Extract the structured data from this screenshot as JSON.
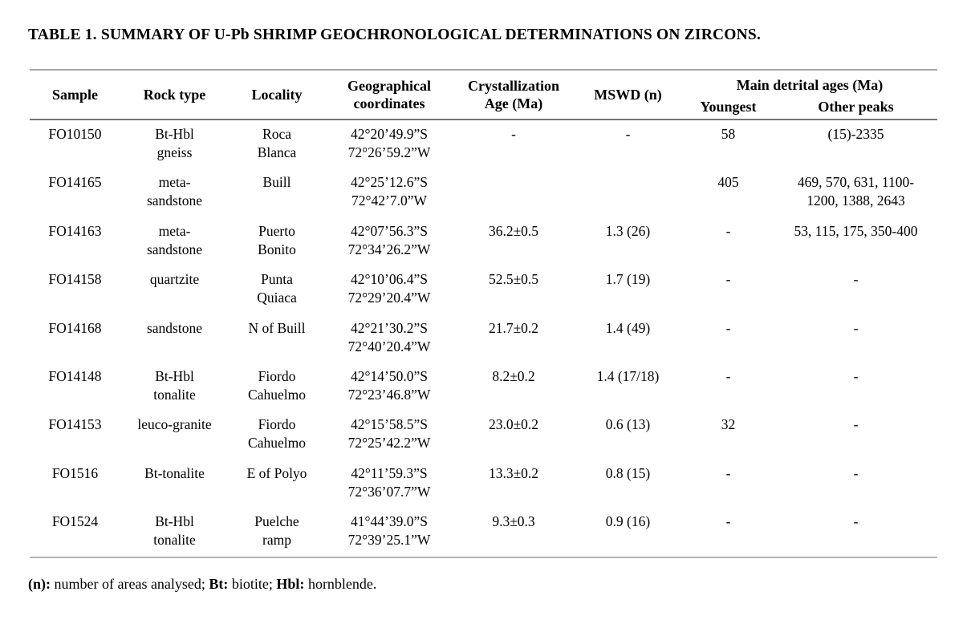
{
  "title": "TABLE 1. SUMMARY OF U-Pb SHRIMP GEOCHRONOLOGICAL DETERMINATIONS ON ZIRCONS.",
  "table": {
    "headers": {
      "sample": "Sample",
      "rock_type": "Rock type",
      "locality": "Locality",
      "geo_coords": "Geographical\ncoordinates",
      "cryst_age": "Crystallization\nAge (Ma)",
      "mswd": "MSWD (n)",
      "detrital_group": "Main detrital ages (Ma)",
      "youngest": "Youngest",
      "other_peaks": "Other peaks"
    },
    "rows": [
      {
        "sample": "FO10150",
        "rock_type": "Bt-Hbl\ngneiss",
        "locality": "Roca\nBlanca",
        "coords": "42°20’49.9”S\n72°26’59.2”W",
        "cryst_age": "-",
        "mswd": "-",
        "youngest": "58",
        "other_peaks": "(15)-2335"
      },
      {
        "sample": "FO14165",
        "rock_type": "meta-\nsandstone",
        "locality": "Buill",
        "coords": "42°25’12.6”S\n72°42’7.0”W",
        "cryst_age": "",
        "mswd": "",
        "youngest": "405",
        "other_peaks": "469, 570, 631, 1100-\n1200, 1388, 2643"
      },
      {
        "sample": "FO14163",
        "rock_type": "meta-\nsandstone",
        "locality": "Puerto\nBonito",
        "coords": "42°07’56.3”S\n72°34’26.2”W",
        "cryst_age": "36.2±0.5",
        "mswd": "1.3 (26)",
        "youngest": "-",
        "other_peaks": "53, 115, 175, 350-400"
      },
      {
        "sample": "FO14158",
        "rock_type": "quartzite",
        "locality": "Punta\nQuiaca",
        "coords": "42°10’06.4”S\n72°29’20.4”W",
        "cryst_age": "52.5±0.5",
        "mswd": "1.7 (19)",
        "youngest": "-",
        "other_peaks": "-"
      },
      {
        "sample": "FO14168",
        "rock_type": "sandstone",
        "locality": "N of Buill",
        "coords": "42°21’30.2”S\n72°40’20.4”W",
        "cryst_age": "21.7±0.2",
        "mswd": "1.4 (49)",
        "youngest": "-",
        "other_peaks": "-"
      },
      {
        "sample": "FO14148",
        "rock_type": "Bt-Hbl\ntonalite",
        "locality": "Fiordo\nCahuelmo",
        "coords": "42°14’50.0”S\n72°23’46.8”W",
        "cryst_age": "8.2±0.2",
        "mswd": "1.4 (17/18)",
        "youngest": "-",
        "other_peaks": "-"
      },
      {
        "sample": "FO14153",
        "rock_type": "leuco-granite",
        "locality": "Fiordo\nCahuelmo",
        "coords": "42°15’58.5”S\n72°25’42.2”W",
        "cryst_age": "23.0±0.2",
        "mswd": "0.6 (13)",
        "youngest": "32",
        "other_peaks": "-"
      },
      {
        "sample": "FO1516",
        "rock_type": "Bt-tonalite",
        "locality": "E of Polyo",
        "coords": "42°11’59.3”S\n72°36’07.7”W",
        "cryst_age": "13.3±0.2",
        "mswd": "0.8 (15)",
        "youngest": "-",
        "other_peaks": "-"
      },
      {
        "sample": "FO1524",
        "rock_type": "Bt-Hbl\ntonalite",
        "locality": "Puelche\nramp",
        "coords": "41°44’39.0”S\n72°39’25.1”W",
        "cryst_age": "9.3±0.3",
        "mswd": "0.9 (16)",
        "youngest": "-",
        "other_peaks": "-"
      }
    ]
  },
  "footnote": {
    "n_label": "(n):",
    "n_text": " number of areas analysed; ",
    "bt_label": "Bt:",
    "bt_text": " biotite; ",
    "hbl_label": "Hbl:",
    "hbl_text": " hornblende."
  }
}
